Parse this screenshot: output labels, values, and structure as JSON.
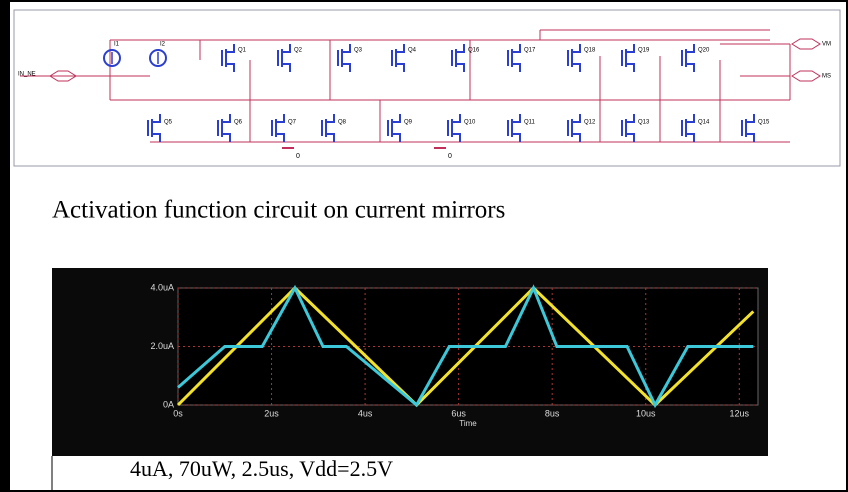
{
  "schematic": {
    "inputs": [
      "IN_NE"
    ],
    "outputs": [
      "VM",
      "MS"
    ],
    "sources": [
      "I1",
      "I2"
    ],
    "top_row": [
      "Q1",
      "Q2",
      "Q3",
      "Q4",
      "Q16",
      "Q17",
      "Q18",
      "Q19",
      "Q20"
    ],
    "bottom_row": [
      "Q5",
      "Q6",
      "Q7",
      "Q8",
      "Q9",
      "Q10",
      "Q11",
      "Q12",
      "Q13",
      "Q14",
      "Q15"
    ],
    "grounds": [
      "0",
      "0"
    ]
  },
  "caption_top": "Activation function circuit on current mirrors",
  "plot": {
    "x_label": "Time",
    "xlim": [
      0,
      12.4
    ],
    "ylim": [
      0,
      4
    ],
    "xticks": [
      {
        "value": 0,
        "label": "0s"
      },
      {
        "value": 2,
        "label": "2us"
      },
      {
        "value": 4,
        "label": "4us"
      },
      {
        "value": 6,
        "label": "6us"
      },
      {
        "value": 8,
        "label": "8us"
      },
      {
        "value": 10,
        "label": "10us"
      },
      {
        "value": 12,
        "label": "12us"
      }
    ],
    "yticks": [
      {
        "value": 0,
        "label": "0A"
      },
      {
        "value": 2,
        "label": "2.0uA"
      },
      {
        "value": 4,
        "label": "4.0uA"
      }
    ],
    "series": [
      {
        "color": "#f2e22e",
        "x": [
          0,
          2.5,
          5.1,
          7.6,
          10.2,
          12.3
        ],
        "values": [
          0,
          4,
          0,
          4,
          0,
          3.2
        ]
      },
      {
        "color": "#3cc8d8",
        "x": [
          0,
          1,
          1.8,
          2.5,
          3.1,
          3.6,
          5.1,
          5.8,
          7,
          7.6,
          8.1,
          9.6,
          10.2,
          10.9,
          12.3
        ],
        "values": [
          0.6,
          2,
          2,
          4,
          2,
          2,
          0,
          2,
          2,
          4,
          2,
          2,
          0,
          2,
          2
        ]
      }
    ]
  },
  "caption_bottom": "4uA, 70uW, 2.5us, Vdd=2.5V"
}
